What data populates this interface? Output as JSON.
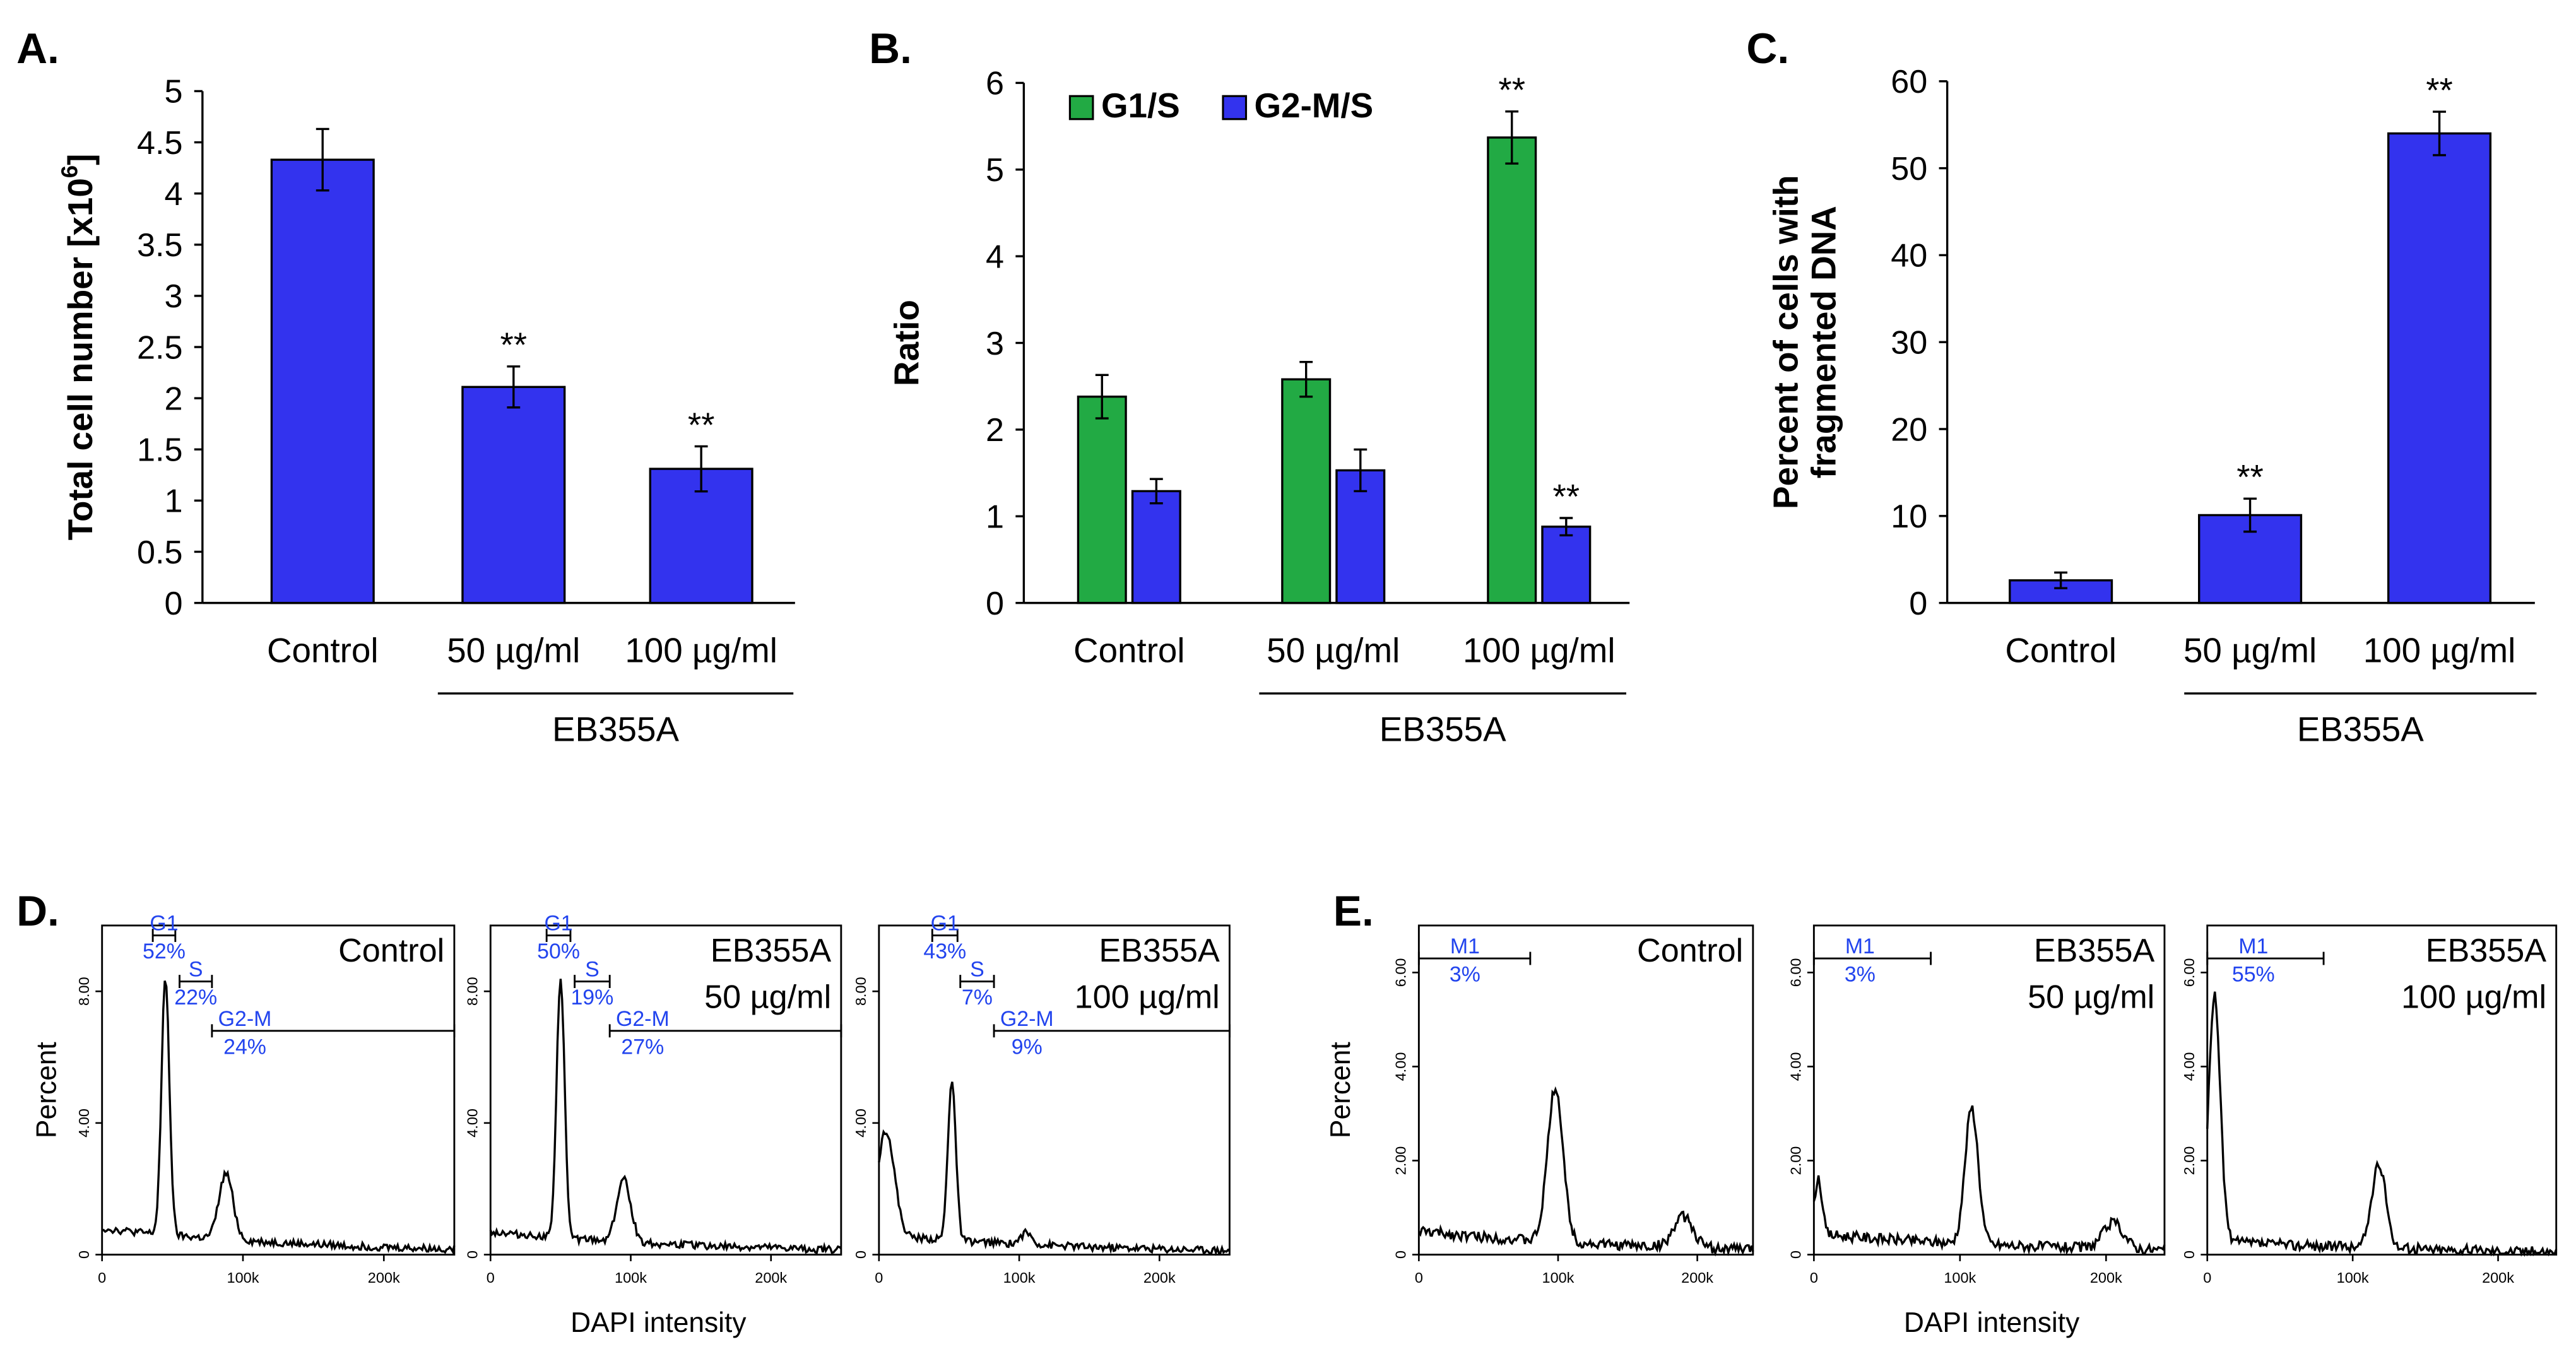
{
  "colors": {
    "blue": "#3333ee",
    "green": "#22aa44",
    "label_blue": "#2244ee",
    "black": "#000000"
  },
  "chart_data": [
    {
      "panel": "A.",
      "type": "bar",
      "categories": [
        "Control",
        "50 µg/ml",
        "100 µg/ml"
      ],
      "values": [
        4.33,
        2.11,
        1.31
      ],
      "errors": [
        0.3,
        0.2,
        0.22
      ],
      "annotations": [
        "",
        "**",
        "**"
      ],
      "ylabel_main": "Total cell number [x10",
      "ylabel_sup": "6",
      "ylabel_end": "]",
      "ylim": [
        0,
        5
      ],
      "yticks": [
        0,
        0.5,
        1,
        1.5,
        2,
        2.5,
        3,
        3.5,
        4,
        4.5,
        5
      ],
      "ytick_labels": [
        "0",
        "0.5",
        "1",
        "1.5",
        "2",
        "2.5",
        "3",
        "3.5",
        "4",
        "4.5",
        "5"
      ],
      "group_label": "EB355A"
    },
    {
      "panel": "B.",
      "type": "bar",
      "categories": [
        "Control",
        "50 µg/ml",
        "100 µg/ml"
      ],
      "series": [
        {
          "name": "G1/S",
          "values": [
            2.38,
            2.58,
            5.37
          ],
          "errors": [
            0.25,
            0.2,
            0.3
          ],
          "annotations": [
            "",
            "",
            "**"
          ]
        },
        {
          "name": "G2-M/S",
          "values": [
            1.29,
            1.53,
            0.88
          ],
          "errors": [
            0.14,
            0.24,
            0.1
          ],
          "annotations": [
            "",
            "",
            "**"
          ]
        }
      ],
      "ylabel": "Ratio",
      "ylim": [
        0,
        6
      ],
      "yticks": [
        0,
        1,
        2,
        3,
        4,
        5,
        6
      ],
      "ytick_labels": [
        "0",
        "1",
        "2",
        "3",
        "4",
        "5",
        "6"
      ],
      "legend_position": "top-left",
      "group_label": "EB355A"
    },
    {
      "panel": "C.",
      "type": "bar",
      "categories": [
        "Control",
        "50 µg/ml",
        "100 µg/ml"
      ],
      "values": [
        2.6,
        10.1,
        54.0
      ],
      "errors": [
        0.9,
        1.9,
        2.5
      ],
      "annotations": [
        "",
        "**",
        "**"
      ],
      "ylabel_line1": "Percent of cells with",
      "ylabel_line2": "fragmented DNA",
      "ylim": [
        0,
        60
      ],
      "yticks": [
        0,
        10,
        20,
        30,
        40,
        50,
        60
      ],
      "ytick_labels": [
        "0",
        "10",
        "20",
        "30",
        "40",
        "50",
        "60"
      ],
      "group_label": "EB355A"
    },
    {
      "panel": "D.",
      "type": "histogram",
      "ylabel": "Percent",
      "xlabel": "DAPI intensity",
      "xlim": [
        0,
        250000
      ],
      "ylim": [
        0,
        10
      ],
      "xticks": [
        0,
        100000,
        200000
      ],
      "xtick_labels": [
        "0",
        "100k",
        "200k"
      ],
      "yticks": [
        0,
        4,
        8
      ],
      "ytick_labels": [
        "0",
        "4.00",
        "8.00"
      ],
      "subplots": [
        {
          "title_line1": "Control",
          "title_line2": "",
          "peaks": [
            [
              45000,
              7.8,
              2800
            ],
            [
              88000,
              2.0,
              5000
            ]
          ],
          "baseline": 0.8,
          "gates": [
            {
              "label": "G1",
              "value": "52%",
              "x0": 36000,
              "x1": 52000,
              "y": 9.7
            },
            {
              "label": "S",
              "value": "22%",
              "x0": 55000,
              "x1": 78000,
              "y": 8.3
            },
            {
              "label": "G2-M",
              "value": "24%",
              "x0": 78000,
              "x1": 250000,
              "y": 6.8
            }
          ]
        },
        {
          "title_line1": "EB355A",
          "title_line2": "50 µg/ml",
          "peaks": [
            [
              50000,
              7.9,
              2800
            ],
            [
              95000,
              1.9,
              5000
            ]
          ],
          "baseline": 0.7,
          "gates": [
            {
              "label": "G1",
              "value": "50%",
              "x0": 40000,
              "x1": 57000,
              "y": 9.7
            },
            {
              "label": "S",
              "value": "19%",
              "x0": 60000,
              "x1": 85000,
              "y": 8.3
            },
            {
              "label": "G2-M",
              "value": "27%",
              "x0": 85000,
              "x1": 250000,
              "y": 6.8
            }
          ]
        },
        {
          "title_line1": "EB355A",
          "title_line2": "100 µg/ml",
          "peaks": [
            [
              52000,
              4.9,
              2800
            ],
            [
              5000,
              3.2,
              6000
            ],
            [
              105000,
              0.35,
              4000
            ]
          ],
          "baseline": 0.6,
          "gates": [
            {
              "label": "G1",
              "value": "43%",
              "x0": 38000,
              "x1": 56000,
              "y": 9.7
            },
            {
              "label": "S",
              "value": "7%",
              "x0": 58000,
              "x1": 82000,
              "y": 8.3
            },
            {
              "label": "G2-M",
              "value": "9%",
              "x0": 82000,
              "x1": 250000,
              "y": 6.8
            }
          ]
        }
      ]
    },
    {
      "panel": "E.",
      "type": "histogram",
      "ylabel": "Percent",
      "xlabel": "DAPI intensity",
      "xlim": [
        0,
        240000
      ],
      "ylim": [
        0,
        7
      ],
      "xticks": [
        0,
        100000,
        200000
      ],
      "xtick_labels": [
        "0",
        "100k",
        "200k"
      ],
      "yticks": [
        0,
        2,
        4,
        6
      ],
      "ytick_labels": [
        "0",
        "2.00",
        "4.00",
        "6.00"
      ],
      "subplots": [
        {
          "title_line1": "Control",
          "title_line2": "",
          "peaks": [
            [
              98000,
              3.3,
              5500
            ],
            [
              190000,
              0.65,
              7000
            ]
          ],
          "baseline": 0.5,
          "gates": [
            {
              "label": "M1",
              "value": "3%",
              "x0": 0,
              "x1": 80000,
              "y": 6.3
            }
          ]
        },
        {
          "title_line1": "EB355A",
          "title_line2": "50 µg/ml",
          "peaks": [
            [
              108000,
              2.9,
              4500
            ],
            [
              205000,
              0.55,
              7000
            ],
            [
              3000,
              1.2,
              2500
            ]
          ],
          "baseline": 0.45,
          "gates": [
            {
              "label": "M1",
              "value": "3%",
              "x0": 0,
              "x1": 80000,
              "y": 6.3
            }
          ]
        },
        {
          "title_line1": "EB355A",
          "title_line2": "100 µg/ml",
          "peaks": [
            [
              5000,
              5.2,
              4000
            ],
            [
              118000,
              1.75,
              5000
            ]
          ],
          "baseline": 0.3,
          "gates": [
            {
              "label": "M1",
              "value": "55%",
              "x0": 0,
              "x1": 80000,
              "y": 6.3
            }
          ]
        }
      ]
    }
  ]
}
